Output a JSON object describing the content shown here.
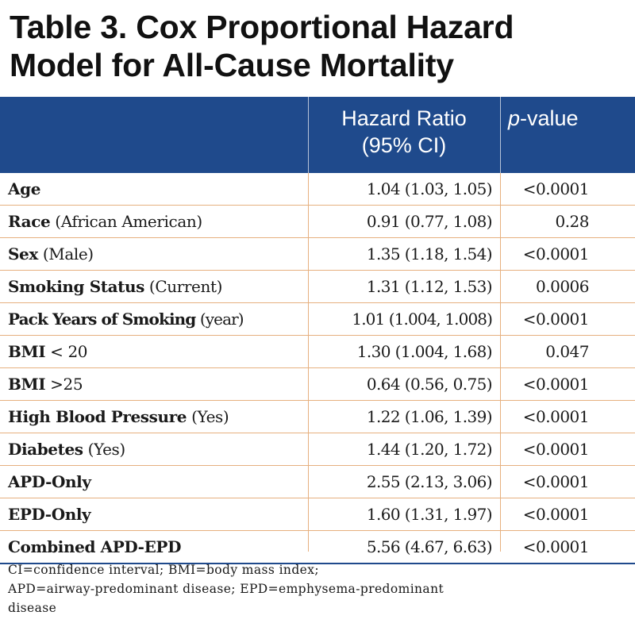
{
  "title": {
    "line1": "Table 3. Cox Proportional Hazard",
    "line2": "Model for All-Cause Mortality"
  },
  "header": {
    "col2_line1": "Hazard Ratio",
    "col2_line2": "(95% CI)",
    "col3_italic": "p",
    "col3_rest": "-value",
    "background": "#1f4a8c"
  },
  "rows": [
    {
      "label": "Age",
      "qualifier": "",
      "hr": "1.04 (1.03, 1.05)",
      "p": "<0.0001"
    },
    {
      "label": "Race",
      "qualifier": " (African American)",
      "hr": "0.91 (0.77, 1.08)",
      "p": "0.28"
    },
    {
      "label": "Sex",
      "qualifier": " (Male)",
      "hr": "1.35 (1.18, 1.54)",
      "p": "<0.0001"
    },
    {
      "label": "Smoking Status",
      "qualifier": " (Current)",
      "hr": "1.31 (1.12, 1.53)",
      "p": "0.0006"
    },
    {
      "label": "Pack Years of Smoking",
      "qualifier": " (year)",
      "hr": "1.01 (1.004, 1.008)",
      "p": "<0.0001"
    },
    {
      "label": "BMI",
      "qualifier": " < 20",
      "hr": "1.30 (1.004, 1.68)",
      "p": "0.047"
    },
    {
      "label": "BMI",
      "qualifier": " >25",
      "hr": "0.64 (0.56, 0.75)",
      "p": "<0.0001"
    },
    {
      "label": "High Blood Pressure",
      "qualifier": " (Yes)",
      "hr": "1.22 (1.06, 1.39)",
      "p": "<0.0001"
    },
    {
      "label": "Diabetes",
      "qualifier": " (Yes)",
      "hr": "1.44 (1.20, 1.72)",
      "p": "<0.0001"
    },
    {
      "label": "APD-Only",
      "qualifier": "",
      "hr": "2.55 (2.13, 3.06)",
      "p": "<0.0001"
    },
    {
      "label": "EPD-Only",
      "qualifier": "",
      "hr": "1.60 (1.31, 1.97)",
      "p": "<0.0001"
    },
    {
      "label": "Combined APD-EPD",
      "qualifier": "",
      "hr": "5.56 (4.67, 6.63)",
      "p": "<0.0001"
    }
  ],
  "footnote": {
    "line1": "CI=confidence interval; BMI=body mass index;",
    "line2": "APD=airway-predominant disease; EPD=emphysema-predominant",
    "line3": "disease"
  },
  "colors": {
    "header_bg": "#1f4a8c",
    "rule": "#e6b07f"
  }
}
